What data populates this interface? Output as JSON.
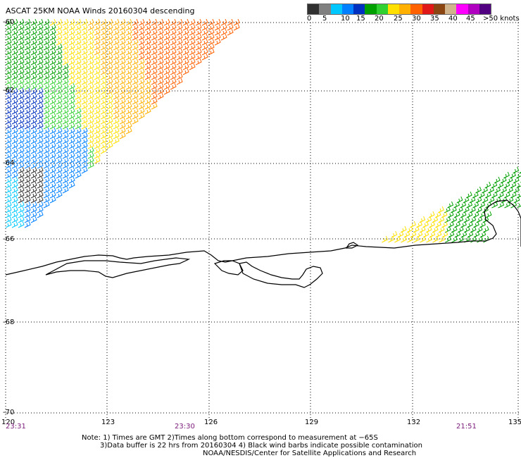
{
  "title": "ASCAT 25KM NOAA Winds 20160304 descending",
  "legend": {
    "colors": [
      "#303030",
      "#808080",
      "#00c8ff",
      "#0080ff",
      "#0030c0",
      "#00a000",
      "#30d030",
      "#ffe000",
      "#ffb000",
      "#ff6000",
      "#e01818",
      "#8b4513",
      "#d2b48c",
      "#ff00ff",
      "#b000c0",
      "#500080"
    ],
    "labels": [
      "0",
      "5",
      "10",
      "15",
      "20",
      "25",
      "30",
      "35",
      "40",
      "45",
      ">50 knots"
    ]
  },
  "lat_labels": [
    "-60",
    "-62",
    "-64",
    "-66",
    "-68",
    "-70"
  ],
  "lon_labels": [
    "120",
    "123",
    "126",
    "129",
    "132",
    "135"
  ],
  "time_labels": [
    "23:31",
    "23:30",
    "21:51"
  ],
  "notes": [
    "Note: 1) Times are GMT 2)Times along bottom correspond to measurement at −65S",
    "3)Data buffer is 22 hrs from 20160304 4) Black wind barbs indicate possible contamination",
    "NOAA/NESDIS/Center for Satellite Applications and Research"
  ]
}
